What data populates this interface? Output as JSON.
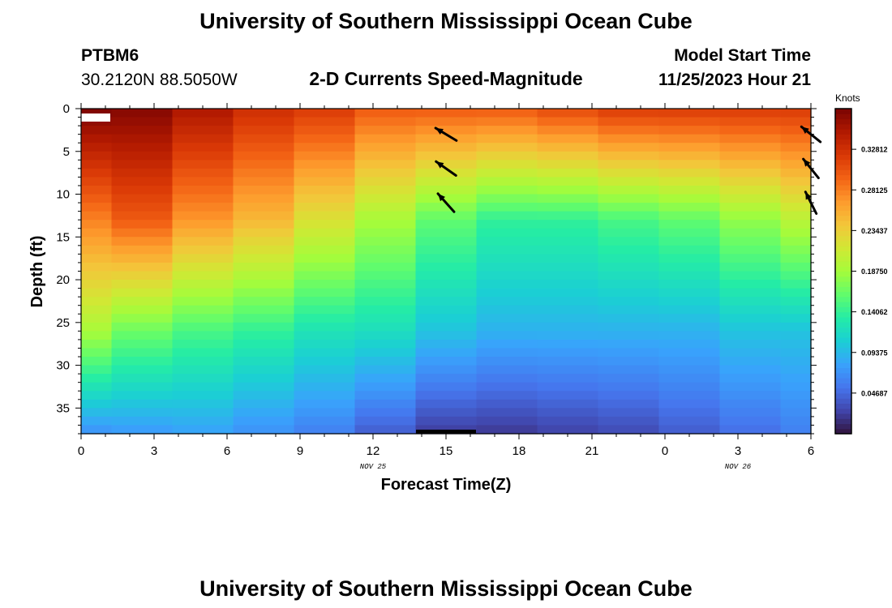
{
  "header": {
    "title": "University of Southern Mississippi Ocean Cube",
    "station_id": "PTBM6",
    "station_coords": "30.2120N  88.5050W",
    "plot_title": "2-D Currents Speed-Magnitude",
    "model_start_label": "Model Start Time",
    "model_start_value": "11/25/2023 Hour 21"
  },
  "footer": {
    "title": "University of Southern Mississippi Ocean Cube"
  },
  "chart_data": {
    "type": "heatmap",
    "title": "2-D Currents Speed-Magnitude",
    "xlabel": "Forecast Time(Z)",
    "ylabel": "Depth (ft)",
    "x_ticks": [
      "0",
      "3",
      "6",
      "9",
      "12",
      "15",
      "18",
      "21",
      "0",
      "3",
      "6"
    ],
    "x_range_hours": [
      0,
      30
    ],
    "date_labels": [
      {
        "text": "NOV 25",
        "hour": 12
      },
      {
        "text": "NOV 26",
        "hour": 27
      }
    ],
    "y_ticks": [
      "0",
      "5",
      "10",
      "15",
      "20",
      "25",
      "30",
      "35"
    ],
    "y_range_ft": [
      0,
      38
    ],
    "colorbar": {
      "units": "Knots",
      "tick_labels": [
        "0.32812",
        "0.28125",
        "0.23437",
        "0.18750",
        "0.14062",
        "0.09375",
        "0.04687"
      ],
      "tick_values": [
        0.32812,
        0.28125,
        0.23437,
        0.1875,
        0.14062,
        0.09375,
        0.04687
      ],
      "range": [
        0.0,
        0.375
      ],
      "colors": [
        "#30123b",
        "#4145ab",
        "#4675ed",
        "#39a2fc",
        "#1bcfd4",
        "#24eca6",
        "#61fc6c",
        "#a4fc3b",
        "#d1e834",
        "#f3c63a",
        "#fe9b2d",
        "#f36315",
        "#d93806",
        "#b11901",
        "#7a0402"
      ]
    },
    "time_columns_hours": [
      0,
      1.25,
      3.75,
      6.25,
      8.75,
      11.25,
      13.75,
      16.25,
      18.75,
      21.25,
      23.75,
      26.25,
      28.75,
      30
    ],
    "depth_profile_ft": [
      0,
      13,
      26,
      38
    ],
    "speed_profiles_knots": [
      [
        0.375,
        0.28,
        0.19,
        0.07
      ],
      [
        0.37,
        0.3,
        0.165,
        0.075
      ],
      [
        0.35,
        0.27,
        0.15,
        0.08
      ],
      [
        0.33,
        0.25,
        0.14,
        0.07
      ],
      [
        0.32,
        0.22,
        0.125,
        0.06
      ],
      [
        0.3,
        0.19,
        0.12,
        0.04
      ],
      [
        0.3,
        0.16,
        0.1,
        0.022
      ],
      [
        0.3,
        0.14,
        0.09,
        0.02
      ],
      [
        0.31,
        0.14,
        0.09,
        0.025
      ],
      [
        0.32,
        0.15,
        0.09,
        0.03
      ],
      [
        0.32,
        0.16,
        0.09,
        0.04
      ],
      [
        0.32,
        0.18,
        0.1,
        0.05
      ],
      [
        0.32,
        0.2,
        0.1,
        0.06
      ]
    ],
    "vectors": [
      {
        "hour": 15,
        "depth_ft": 3,
        "dx": -1,
        "dy": -0.6
      },
      {
        "hour": 15,
        "depth_ft": 7,
        "dx": -1,
        "dy": -0.7
      },
      {
        "hour": 15,
        "depth_ft": 11,
        "dx": -0.8,
        "dy": -0.9
      },
      {
        "hour": 30,
        "depth_ft": 3,
        "dx": -1,
        "dy": -0.8
      },
      {
        "hour": 30,
        "depth_ft": 7,
        "dx": -0.8,
        "dy": -1
      },
      {
        "hour": 30,
        "depth_ft": 11,
        "dx": -0.5,
        "dy": -1
      }
    ]
  }
}
